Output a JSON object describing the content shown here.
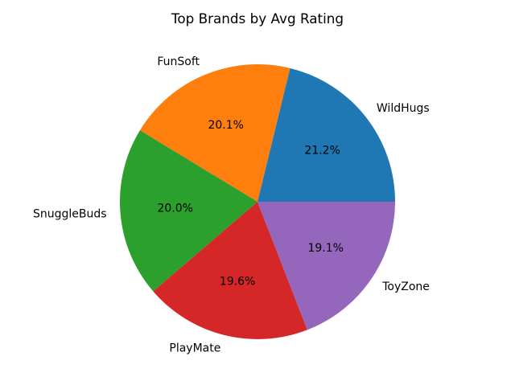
{
  "chart_data": {
    "type": "pie",
    "title": "Top Brands by Avg Rating",
    "slices": [
      {
        "label": "WildHugs",
        "value": 21.2,
        "pct_label": "21.2%",
        "color": "#1f77b4"
      },
      {
        "label": "FunSoft",
        "value": 20.1,
        "pct_label": "20.1%",
        "color": "#ff7f0e"
      },
      {
        "label": "SnuggleBuds",
        "value": 20.0,
        "pct_label": "20.0%",
        "color": "#2ca02c"
      },
      {
        "label": "PlayMate",
        "value": 19.6,
        "pct_label": "19.6%",
        "color": "#d62728"
      },
      {
        "label": "ToyZone",
        "value": 19.1,
        "pct_label": "19.1%",
        "color": "#9467bd"
      }
    ],
    "start_angle_deg": 0,
    "direction": "counterclockwise",
    "legend": "none"
  }
}
